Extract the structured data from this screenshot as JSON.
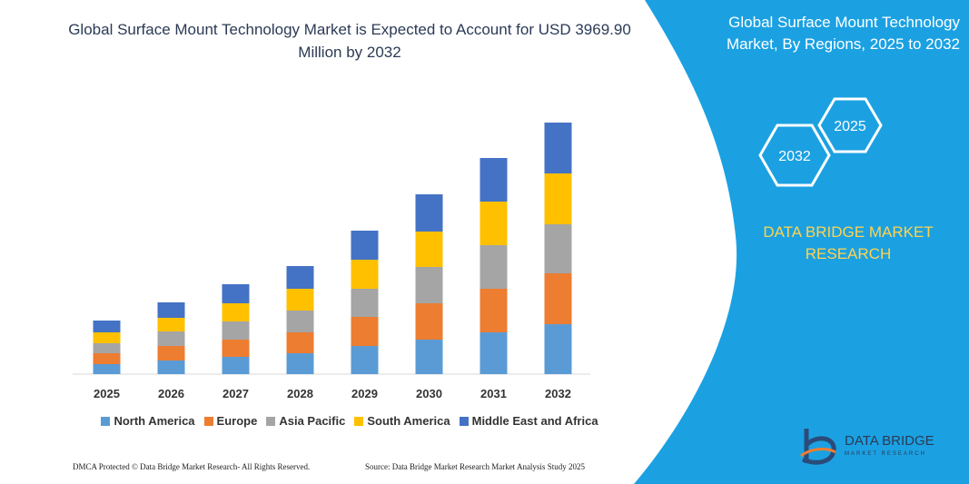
{
  "chart_data": {
    "type": "bar",
    "stacked": true,
    "title": "Global Surface Mount Technology Market is Expected to Account for USD 3969.90 Million by 2032",
    "categories": [
      "2025",
      "2026",
      "2027",
      "2028",
      "2029",
      "2030",
      "2031",
      "2032"
    ],
    "series": [
      {
        "name": "North America",
        "color": "#5b9bd5",
        "values": [
          11,
          15,
          19,
          23,
          31,
          38,
          46,
          55
        ]
      },
      {
        "name": "Europe",
        "color": "#ed7d31",
        "values": [
          12,
          16,
          19,
          23,
          32,
          40,
          48,
          56
        ]
      },
      {
        "name": "Asia Pacific",
        "color": "#a5a5a5",
        "values": [
          11,
          16,
          20,
          24,
          31,
          40,
          48,
          54
        ]
      },
      {
        "name": "South America",
        "color": "#ffc000",
        "values": [
          12,
          15,
          20,
          24,
          32,
          39,
          48,
          56
        ]
      },
      {
        "name": "Middle East and Africa",
        "color": "#4472c4",
        "values": [
          13,
          17,
          21,
          25,
          32,
          41,
          48,
          56
        ]
      }
    ],
    "ylim": [
      0,
      280
    ],
    "legend_position": "bottom"
  },
  "side_panel": {
    "title": "Global Surface Mount Technology Market, By Regions, 2025 to 2032",
    "hexagons": [
      "2025",
      "2032"
    ],
    "brand": "DATA BRIDGE MARKET RESEARCH"
  },
  "logo": {
    "name": "DATA BRIDGE",
    "tagline": "MARKET RESEARCH"
  },
  "footer": {
    "left": "DMCA Protected © Data Bridge Market Research-  All Rights Reserved.",
    "right": "Source: Data Bridge Market Research  Market Analysis Study 2025"
  }
}
